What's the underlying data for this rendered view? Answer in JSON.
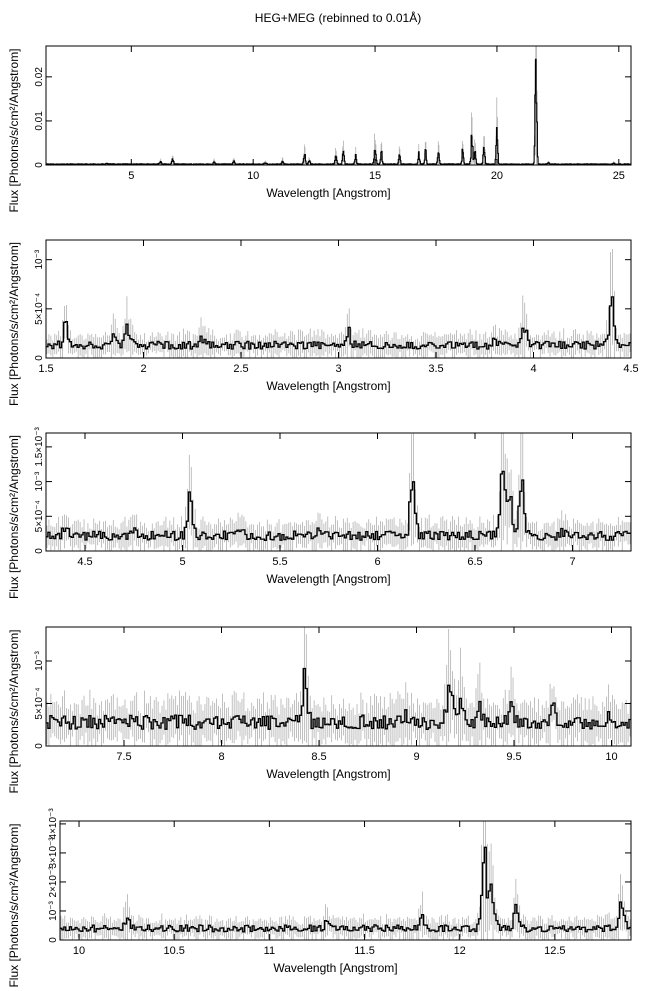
{
  "figure": {
    "title": "HEG+MEG (rebinned to 0.01Å)"
  },
  "colors": {
    "spectrum": "#000000",
    "errorbar": "#b0b0b0",
    "axis": "#000000"
  },
  "chart_data": [
    {
      "type": "line",
      "xlabel": "Wavelength [Angstrom]",
      "ylabel": "Flux [Photons/s/cm²/Angstrom]",
      "xlim": [
        1.5,
        25.5
      ],
      "ylim": [
        0,
        0.027
      ],
      "xticks": [
        {
          "v": 5,
          "label": "5"
        },
        {
          "v": 10,
          "label": "10"
        },
        {
          "v": 15,
          "label": "15"
        },
        {
          "v": 20,
          "label": "20"
        },
        {
          "v": 25,
          "label": "25"
        }
      ],
      "yticks": [
        {
          "v": 0,
          "label": "0"
        },
        {
          "v": 0.01,
          "label": "0.01"
        },
        {
          "v": 0.02,
          "label": "0.02"
        }
      ],
      "series": [
        {
          "baseline": 0.0002,
          "x": [
            1.5,
            4.0,
            6.2,
            6.7,
            8.4,
            9.2,
            10.5,
            11.2,
            12.1,
            12.3,
            13.4,
            13.7,
            14.2,
            15.0,
            15.26,
            16.0,
            16.8,
            17.07,
            17.6,
            18.6,
            18.97,
            19.1,
            19.47,
            20.0,
            21.6,
            22.1,
            24.8
          ],
          "values": [
            0.0003,
            0.0004,
            0.0008,
            0.0013,
            0.0009,
            0.001,
            0.0006,
            0.0009,
            0.0025,
            0.001,
            0.0025,
            0.003,
            0.0018,
            0.005,
            0.0025,
            0.002,
            0.0023,
            0.003,
            0.0025,
            0.0035,
            0.0065,
            0.0033,
            0.0045,
            0.0068,
            0.0265,
            0.0006,
            0.0004
          ]
        }
      ]
    },
    {
      "type": "line",
      "xlabel": "Wavelength [Angstrom]",
      "ylabel": "Flux [Photons/s/cm²/Angstrom]",
      "xlim": [
        1.5,
        4.5
      ],
      "ylim": [
        0,
        0.0012
      ],
      "xticks": [
        {
          "v": 1.5,
          "label": "1.5"
        },
        {
          "v": 2,
          "label": "2"
        },
        {
          "v": 2.5,
          "label": "2.5"
        },
        {
          "v": 3,
          "label": "3"
        },
        {
          "v": 3.5,
          "label": "3.5"
        },
        {
          "v": 4,
          "label": "4"
        },
        {
          "v": 4.5,
          "label": "4.5"
        }
      ],
      "yticks": [
        {
          "v": 0,
          "label": "0"
        },
        {
          "v": 0.0005,
          "label": "5×10⁻⁴"
        },
        {
          "v": 0.001,
          "label": "10⁻³"
        }
      ],
      "series": [
        {
          "baseline": 0.00013,
          "x": [
            1.6,
            1.85,
            1.92,
            2.3,
            3.05,
            3.8,
            3.95,
            4.4
          ],
          "values": [
            0.0003,
            0.00025,
            0.0003,
            0.00018,
            0.00028,
            0.0002,
            0.00032,
            0.00055
          ]
        }
      ]
    },
    {
      "type": "line",
      "xlabel": "Wavelength [Angstrom]",
      "ylabel": "Flux [Photons/s/cm²/Angstrom]",
      "xlim": [
        4.3,
        7.3
      ],
      "ylim": [
        0,
        0.0017
      ],
      "xticks": [
        {
          "v": 4.5,
          "label": "4.5"
        },
        {
          "v": 5,
          "label": "5"
        },
        {
          "v": 5.5,
          "label": "5.5"
        },
        {
          "v": 6,
          "label": "6"
        },
        {
          "v": 6.5,
          "label": "6.5"
        },
        {
          "v": 7,
          "label": "7"
        }
      ],
      "yticks": [
        {
          "v": 0,
          "label": "0"
        },
        {
          "v": 0.0005,
          "label": "5×10⁻⁴"
        },
        {
          "v": 0.001,
          "label": "10⁻³"
        },
        {
          "v": 0.0015,
          "label": "1.5×10⁻³"
        }
      ],
      "series": [
        {
          "baseline": 0.00022,
          "x": [
            4.4,
            4.75,
            5.04,
            5.3,
            5.7,
            6.18,
            6.64,
            6.68,
            6.74,
            6.95
          ],
          "values": [
            0.0003,
            0.0003,
            0.0007,
            0.00025,
            0.00028,
            0.0011,
            0.0012,
            0.00075,
            0.0009,
            0.0003
          ]
        }
      ]
    },
    {
      "type": "line",
      "xlabel": "Wavelength [Angstrom]",
      "ylabel": "Flux [Photons/s/cm²/Angstrom]",
      "xlim": [
        7.1,
        10.1
      ],
      "ylim": [
        0,
        0.0014
      ],
      "xticks": [
        {
          "v": 7.5,
          "label": "7.5"
        },
        {
          "v": 8,
          "label": "8"
        },
        {
          "v": 8.5,
          "label": "8.5"
        },
        {
          "v": 9,
          "label": "9"
        },
        {
          "v": 9.5,
          "label": "9.5"
        },
        {
          "v": 10,
          "label": "10"
        }
      ],
      "yticks": [
        {
          "v": 0,
          "label": "0"
        },
        {
          "v": 0.0005,
          "label": "5×10⁻⁴"
        },
        {
          "v": 0.001,
          "label": "10⁻³"
        }
      ],
      "series": [
        {
          "baseline": 0.00028,
          "x": [
            7.8,
            8.43,
            8.95,
            9.17,
            9.23,
            9.32,
            9.48,
            9.7,
            10.0
          ],
          "values": [
            0.0003,
            0.00085,
            0.00035,
            0.0009,
            0.0006,
            0.0005,
            0.00045,
            0.0004,
            0.00035
          ]
        }
      ]
    },
    {
      "type": "line",
      "xlabel": "Wavelength [Angstrom]",
      "ylabel": "Flux [Photons/s/cm²/Angstrom]",
      "xlim": [
        9.9,
        12.9
      ],
      "ylim": [
        0,
        0.0041
      ],
      "xticks": [
        {
          "v": 10,
          "label": "10"
        },
        {
          "v": 10.5,
          "label": "10.5"
        },
        {
          "v": 11,
          "label": "11"
        },
        {
          "v": 11.5,
          "label": "11.5"
        },
        {
          "v": 12,
          "label": "12"
        },
        {
          "v": 12.5,
          "label": "12.5"
        }
      ],
      "yticks": [
        {
          "v": 0,
          "label": "0"
        },
        {
          "v": 0.001,
          "label": "10⁻³"
        },
        {
          "v": 0.002,
          "label": "2×10⁻³"
        },
        {
          "v": 0.003,
          "label": "3×10⁻³"
        },
        {
          "v": 0.004,
          "label": "4×10⁻³"
        }
      ],
      "series": [
        {
          "baseline": 0.0004,
          "x": [
            10.25,
            11.3,
            11.8,
            12.13,
            12.17,
            12.3,
            12.85
          ],
          "values": [
            0.0008,
            0.0006,
            0.0009,
            0.0032,
            0.0018,
            0.0011,
            0.0012
          ]
        }
      ]
    }
  ]
}
